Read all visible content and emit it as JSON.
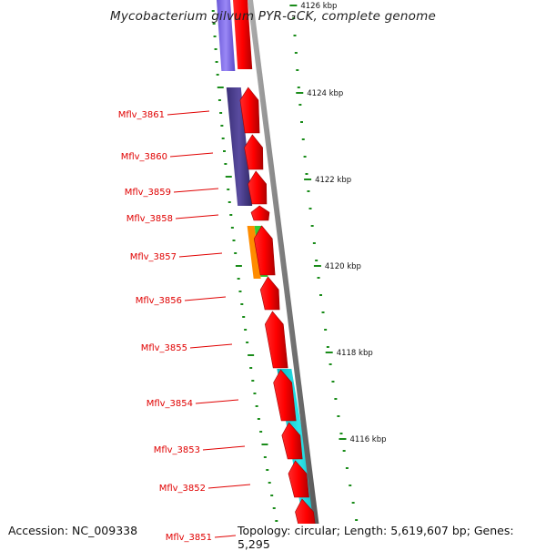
{
  "title": "Mycobacterium gilvum PYR-GCK, complete genome",
  "footer": {
    "accession": "Accession: NC_009338",
    "summary": "Topology: circular; Length: 5,619,607 bp; Genes: 5,295"
  },
  "colors": {
    "gene_label": "#e00000",
    "cds_forward": "#ff0000",
    "backbone": "#8c8c8c",
    "tick": "#1a8c1a",
    "band_lavender": "#7b68e6",
    "band_indigo": "#483d8b",
    "band_orange": "#ff8c00",
    "band_green": "#32cd32",
    "band_cyan": "#00cfd6"
  },
  "genes": [
    {
      "id": "Mflv_3861"
    },
    {
      "id": "Mflv_3860"
    },
    {
      "id": "Mflv_3859"
    },
    {
      "id": "Mflv_3858"
    },
    {
      "id": "Mflv_3857"
    },
    {
      "id": "Mflv_3856"
    },
    {
      "id": "Mflv_3855"
    },
    {
      "id": "Mflv_3854"
    },
    {
      "id": "Mflv_3853"
    },
    {
      "id": "Mflv_3852"
    },
    {
      "id": "Mflv_3851"
    }
  ],
  "kbp_marks": [
    {
      "label": "4126 kbp"
    },
    {
      "label": "4124 kbp"
    },
    {
      "label": "4122 kbp"
    },
    {
      "label": "4120 kbp"
    },
    {
      "label": "4118 kbp"
    },
    {
      "label": "4116 kbp"
    }
  ]
}
